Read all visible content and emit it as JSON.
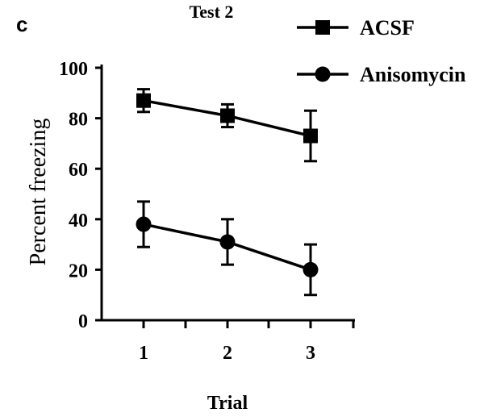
{
  "panel_label": "c",
  "chart_data": {
    "type": "line",
    "title": "Test 2",
    "xlabel": "Trial",
    "ylabel": "Percent freezing",
    "categories": [
      "1",
      "2",
      "3"
    ],
    "ylim": [
      0,
      100
    ],
    "yticks": [
      "0",
      "20",
      "40",
      "60",
      "80",
      "100"
    ],
    "legend_position": "top-right",
    "grid": false,
    "series": [
      {
        "name": "ACSF",
        "marker": "square",
        "values": [
          87,
          81,
          73
        ],
        "errors": [
          4.5,
          4.5,
          10
        ],
        "color": "#000000"
      },
      {
        "name": "Anisomycin",
        "marker": "circle",
        "values": [
          38,
          31,
          20
        ],
        "errors": [
          9,
          9,
          10
        ],
        "color": "#000000"
      }
    ]
  }
}
